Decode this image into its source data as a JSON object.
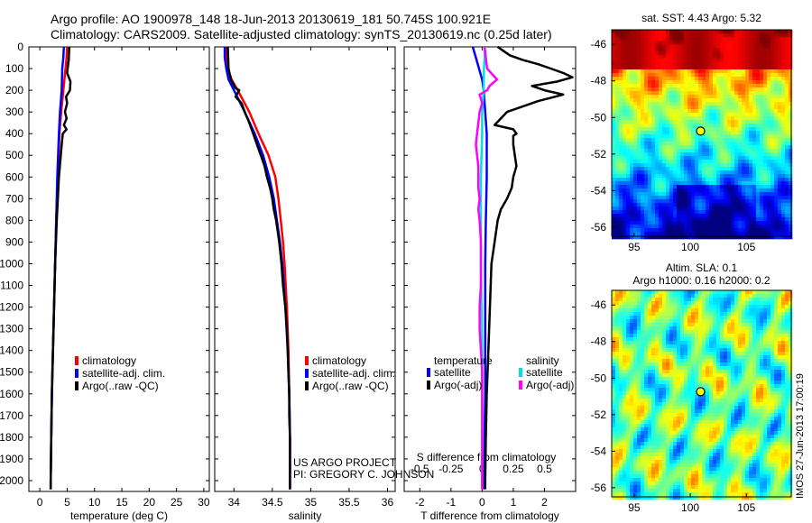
{
  "header": {
    "line1": "Argo profile: AO 1900978_148 18-Jun-2013 20130619_181 50.745S 100.921E",
    "line2": "Climatology: CARS2009. Satellite-adjusted climatology: synTS_20130619.nc (0.25d later)"
  },
  "colors": {
    "climatology": "#ff0000",
    "satellite": "#0000ff",
    "argo": "#000000",
    "salinity_satellite": "#00e0e0",
    "salinity_argo": "#ff00ff"
  },
  "depth_ticks": [
    "0",
    "100",
    "200",
    "300",
    "400",
    "500",
    "600",
    "700",
    "800",
    "900",
    "1000",
    "1100",
    "1200",
    "1300",
    "1400",
    "1500",
    "1600",
    "1700",
    "1800",
    "1900",
    "2000"
  ],
  "chart_data": [
    {
      "type": "line",
      "xlabel": "temperature (deg C)",
      "xlim": [
        -2,
        31
      ],
      "ylim": [
        2050,
        0
      ],
      "x_ticks": [
        "0",
        "5",
        "10",
        "15",
        "20",
        "25",
        "30"
      ],
      "legend": {
        "placement": "lower-center",
        "items": [
          "climatology",
          "satellite-adj. clim.",
          "Argo(..raw -QC)"
        ]
      },
      "series": [
        {
          "name": "climatology",
          "depth": [
            0,
            50,
            100,
            200,
            300,
            400,
            600,
            800,
            1000,
            1200,
            1400,
            1600,
            1800,
            2000,
            2040
          ],
          "values": [
            5.0,
            4.9,
            4.7,
            4.3,
            3.9,
            3.6,
            3.3,
            3.0,
            2.8,
            2.6,
            2.4,
            2.2,
            2.1,
            2.0,
            2.0
          ]
        },
        {
          "name": "satellite-adj. clim.",
          "depth": [
            0,
            50,
            100,
            200,
            300,
            400,
            600,
            800,
            1000,
            1200,
            1400,
            1600,
            1800,
            2000,
            2040
          ],
          "values": [
            4.4,
            4.3,
            4.1,
            4.0,
            3.7,
            3.5,
            3.2,
            3.0,
            2.8,
            2.6,
            2.4,
            2.2,
            2.1,
            2.0,
            2.0
          ]
        },
        {
          "name": "Argo(..raw -QC)",
          "depth": [
            0,
            60,
            120,
            160,
            200,
            230,
            260,
            300,
            330,
            360,
            380,
            400,
            450,
            600,
            800,
            1000,
            1200,
            1400,
            1600,
            1800,
            2000,
            2040
          ],
          "values": [
            5.4,
            5.3,
            5.0,
            5.6,
            5.5,
            4.8,
            5.0,
            4.6,
            4.9,
            4.4,
            4.9,
            4.2,
            4.0,
            3.5,
            3.1,
            2.8,
            2.6,
            2.4,
            2.2,
            2.1,
            2.0,
            2.0
          ]
        }
      ]
    },
    {
      "type": "line",
      "xlabel": "salinity",
      "xlim": [
        33.75,
        36.1
      ],
      "ylim": [
        2050,
        0
      ],
      "x_ticks": [
        "34",
        "34.5",
        "35",
        "35.5",
        "36"
      ],
      "legend": {
        "placement": "lower-center",
        "items": [
          "climatology",
          "satellite-adj. clim.",
          "Argo(..raw -QC)"
        ]
      },
      "annotation": [
        "US ARGO PROJECT",
        "PI: GREGORY C. JOHNSON"
      ],
      "series": [
        {
          "name": "climatology",
          "depth": [
            0,
            50,
            100,
            150,
            200,
            300,
            400,
            500,
            600,
            700,
            800,
            900,
            1000,
            1200,
            1400,
            1600,
            1800,
            2000,
            2040
          ],
          "values": [
            33.9,
            33.9,
            33.92,
            33.97,
            34.05,
            34.2,
            34.32,
            34.45,
            34.54,
            34.58,
            34.61,
            34.64,
            34.66,
            34.69,
            34.71,
            34.72,
            34.73,
            34.73,
            34.73
          ]
        },
        {
          "name": "satellite-adj. clim.",
          "depth": [
            0,
            50,
            100,
            150,
            200,
            300,
            400,
            500,
            600,
            700,
            800,
            900,
            1000,
            1200,
            1400,
            1600,
            1800,
            2000,
            2040
          ],
          "values": [
            33.88,
            33.88,
            33.9,
            33.93,
            34.0,
            34.14,
            34.27,
            34.38,
            34.46,
            34.52,
            34.56,
            34.6,
            34.63,
            34.67,
            34.7,
            34.72,
            34.73,
            34.73,
            34.73
          ]
        },
        {
          "name": "Argo(..raw -QC)",
          "depth": [
            0,
            100,
            150,
            190,
            200,
            230,
            260,
            300,
            350,
            400,
            450,
            500,
            550,
            600,
            650,
            700,
            750,
            800,
            900,
            1000,
            1100,
            1200,
            1300,
            1400,
            1500,
            1600,
            1700,
            1800,
            1900,
            2000,
            2040
          ],
          "values": [
            33.92,
            33.93,
            33.96,
            34.02,
            34.07,
            34.02,
            34.1,
            34.14,
            34.2,
            34.25,
            34.3,
            34.35,
            34.4,
            34.43,
            34.47,
            34.5,
            34.52,
            34.55,
            34.59,
            34.62,
            34.64,
            34.67,
            34.69,
            34.7,
            34.71,
            34.72,
            34.72,
            34.73,
            34.73,
            34.73,
            34.73
          ]
        }
      ]
    },
    {
      "type": "line",
      "xlabel": "T difference from climatology",
      "xlabel_top": "S difference from climatology",
      "xlim": [
        -2.5,
        3.0
      ],
      "ylim": [
        2050,
        0
      ],
      "x_ticks": [
        "-2",
        "-1",
        "0",
        "1",
        "2"
      ],
      "x_ticks_top": [
        "-0.5",
        "-0.25",
        "0",
        "0.25",
        "0.5"
      ],
      "legend": {
        "placement": "lower-center",
        "groups": [
          "temperature",
          "salinity"
        ],
        "items": [
          "satellite",
          "Argo(-adj)",
          "satellite",
          "Argo(-adj)"
        ]
      },
      "series": [
        {
          "name": "satellite",
          "quantity": "temperature",
          "depth": [
            0,
            50,
            100,
            150,
            200,
            300,
            400,
            600,
            800,
            1000,
            1200,
            1400,
            1600,
            1800,
            2000,
            2040
          ],
          "values": [
            -0.3,
            -0.2,
            -0.1,
            0.0,
            0.05,
            0.1,
            0.15,
            0.15,
            0.12,
            0.1,
            0.1,
            0.1,
            0.1,
            0.08,
            0.07,
            0.07
          ]
        },
        {
          "name": "Argo(-adj)",
          "quantity": "temperature",
          "depth": [
            0,
            20,
            40,
            60,
            80,
            100,
            120,
            140,
            160,
            180,
            200,
            220,
            250,
            280,
            300,
            330,
            360,
            380,
            400,
            410,
            450,
            500,
            550,
            600,
            650,
            700,
            750,
            800,
            900,
            1000,
            1200,
            1400,
            1600,
            1800,
            2000,
            2040
          ],
          "values": [
            0.5,
            0.7,
            0.9,
            1.3,
            1.8,
            2.2,
            2.6,
            2.9,
            2.4,
            1.6,
            2.0,
            2.6,
            1.8,
            1.2,
            0.8,
            0.6,
            0.4,
            1.0,
            1.1,
            1.0,
            1.0,
            1.05,
            1.1,
            1.0,
            0.95,
            0.8,
            0.6,
            0.5,
            0.4,
            0.3,
            0.25,
            0.2,
            0.15,
            0.12,
            0.1,
            0.1
          ]
        },
        {
          "name": "satellite",
          "quantity": "salinity",
          "depth": [
            0,
            50,
            100,
            200,
            300,
            400,
            600,
            800,
            1000,
            1200,
            1400,
            1600,
            1800,
            2000,
            2040
          ],
          "values": [
            0.02,
            0.02,
            0.015,
            0.012,
            0.0,
            0.0,
            -0.01,
            -0.01,
            -0.01,
            -0.005,
            0.0,
            0.0,
            0.0,
            0.0,
            0.0
          ]
        },
        {
          "name": "Argo(-adj)",
          "quantity": "salinity",
          "depth": [
            0,
            100,
            150,
            180,
            200,
            220,
            260,
            300,
            350,
            400,
            450,
            500,
            550,
            600,
            650,
            700,
            750,
            800,
            900,
            1000,
            1100,
            1200,
            1300,
            1400,
            1500,
            1600,
            1800,
            2000,
            2040
          ],
          "values": [
            0.02,
            0.04,
            0.12,
            0.06,
            0.04,
            -0.02,
            0.0,
            -0.02,
            -0.03,
            -0.04,
            -0.05,
            -0.04,
            -0.03,
            -0.03,
            -0.03,
            -0.02,
            -0.03,
            -0.02,
            -0.01,
            -0.01,
            -0.01,
            -0.02,
            -0.02,
            -0.01,
            0.0,
            0.0,
            0.0,
            0.0,
            0.0
          ]
        }
      ]
    },
    {
      "type": "heatmap",
      "title": "sat. SST: 4.43 Argo: 5.32",
      "xlim": [
        93,
        109
      ],
      "ylim": [
        -56.5,
        -45.2
      ],
      "x_ticks": [
        "95",
        "100",
        "105"
      ],
      "y_ticks": [
        "-46",
        "-48",
        "-50",
        "-52",
        "-54",
        "-56"
      ],
      "marker": {
        "lon": 100.921,
        "lat": -50.745
      }
    },
    {
      "type": "heatmap",
      "title_line1": "Altim. SLA: 0.1",
      "title_line2": "Argo h1000: 0.16 h2000: 0.2",
      "xlim": [
        93,
        109
      ],
      "ylim": [
        -56.5,
        -45.2
      ],
      "x_ticks": [
        "95",
        "100",
        "105"
      ],
      "y_ticks": [
        "-46",
        "-48",
        "-50",
        "-52",
        "-54",
        "-56"
      ],
      "marker": {
        "lon": 100.921,
        "lat": -50.745
      }
    }
  ],
  "footer": {
    "imos": "IMOS 27-Jun-2013 17:00:19"
  }
}
